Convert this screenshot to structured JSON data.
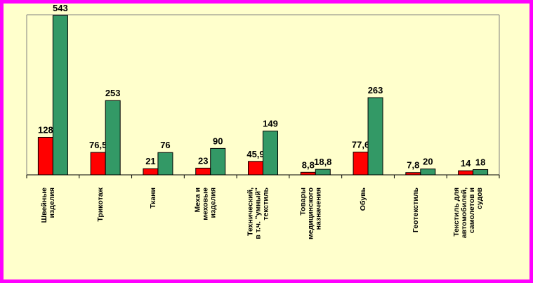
{
  "chart_data": {
    "type": "bar",
    "categories": [
      [
        "Швейные",
        "изделия"
      ],
      [
        "Трикотаж"
      ],
      [
        "Ткани"
      ],
      [
        "Меха и",
        "меховые",
        "изделия"
      ],
      [
        "Технический,",
        "в т.ч. \"умный\"",
        "текстиль"
      ],
      [
        "Товары",
        "медицинского",
        "назначения"
      ],
      [
        "Обувь"
      ],
      [
        "Геотекстиль"
      ],
      [
        "Текстиль для",
        "автомобилей,",
        "самолетов и",
        "судов"
      ]
    ],
    "series": [
      {
        "values": [
          128,
          76.5,
          21,
          23,
          45.9,
          8.8,
          77.6,
          7.8,
          14
        ],
        "labels": [
          "128",
          "76,5",
          "21",
          "23",
          "45,9",
          "8,8",
          "77,6",
          "7,8",
          "14"
        ],
        "color": "#ff0000"
      },
      {
        "values": [
          543,
          253,
          76,
          90,
          149,
          18.8,
          263,
          20,
          18
        ],
        "labels": [
          "543",
          "253",
          "76",
          "90",
          "149",
          "18,8",
          "263",
          "20",
          "18"
        ],
        "color": "#339966"
      }
    ],
    "ylim": [
      0,
      543
    ],
    "grid": false,
    "legend": "none"
  },
  "colors": {
    "border": "#ff00ff",
    "background": "#ffffcc",
    "axis": "#808080"
  }
}
